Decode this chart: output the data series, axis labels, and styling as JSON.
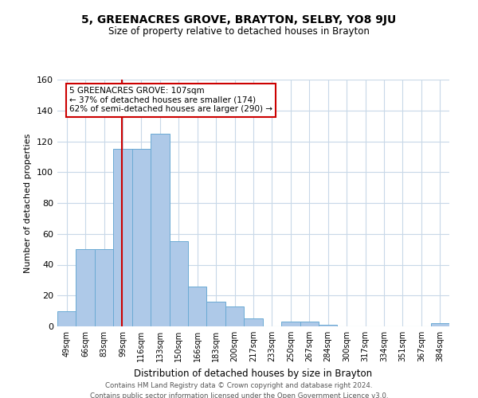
{
  "title": "5, GREENACRES GROVE, BRAYTON, SELBY, YO8 9JU",
  "subtitle": "Size of property relative to detached houses in Brayton",
  "xlabel": "Distribution of detached houses by size in Brayton",
  "ylabel": "Number of detached properties",
  "bin_labels": [
    "49sqm",
    "66sqm",
    "83sqm",
    "99sqm",
    "116sqm",
    "133sqm",
    "150sqm",
    "166sqm",
    "183sqm",
    "200sqm",
    "217sqm",
    "233sqm",
    "250sqm",
    "267sqm",
    "284sqm",
    "300sqm",
    "317sqm",
    "334sqm",
    "351sqm",
    "367sqm",
    "384sqm"
  ],
  "bar_heights": [
    10,
    50,
    50,
    115,
    115,
    125,
    55,
    26,
    16,
    13,
    5,
    0,
    3,
    3,
    1,
    0,
    0,
    0,
    0,
    0,
    2
  ],
  "bar_color": "#aec9e8",
  "bar_edge_color": "#6aaad4",
  "property_line_color": "#cc0000",
  "ylim": [
    0,
    160
  ],
  "yticks": [
    0,
    20,
    40,
    60,
    80,
    100,
    120,
    140,
    160
  ],
  "annotation_text": "5 GREENACRES GROVE: 107sqm\n← 37% of detached houses are smaller (174)\n62% of semi-detached houses are larger (290) →",
  "annotation_box_color": "#ffffff",
  "annotation_box_edge": "#cc0000",
  "footer_line1": "Contains HM Land Registry data © Crown copyright and database right 2024.",
  "footer_line2": "Contains public sector information licensed under the Open Government Licence v3.0.",
  "bg_color": "#ffffff",
  "grid_color": "#c8d8e8"
}
